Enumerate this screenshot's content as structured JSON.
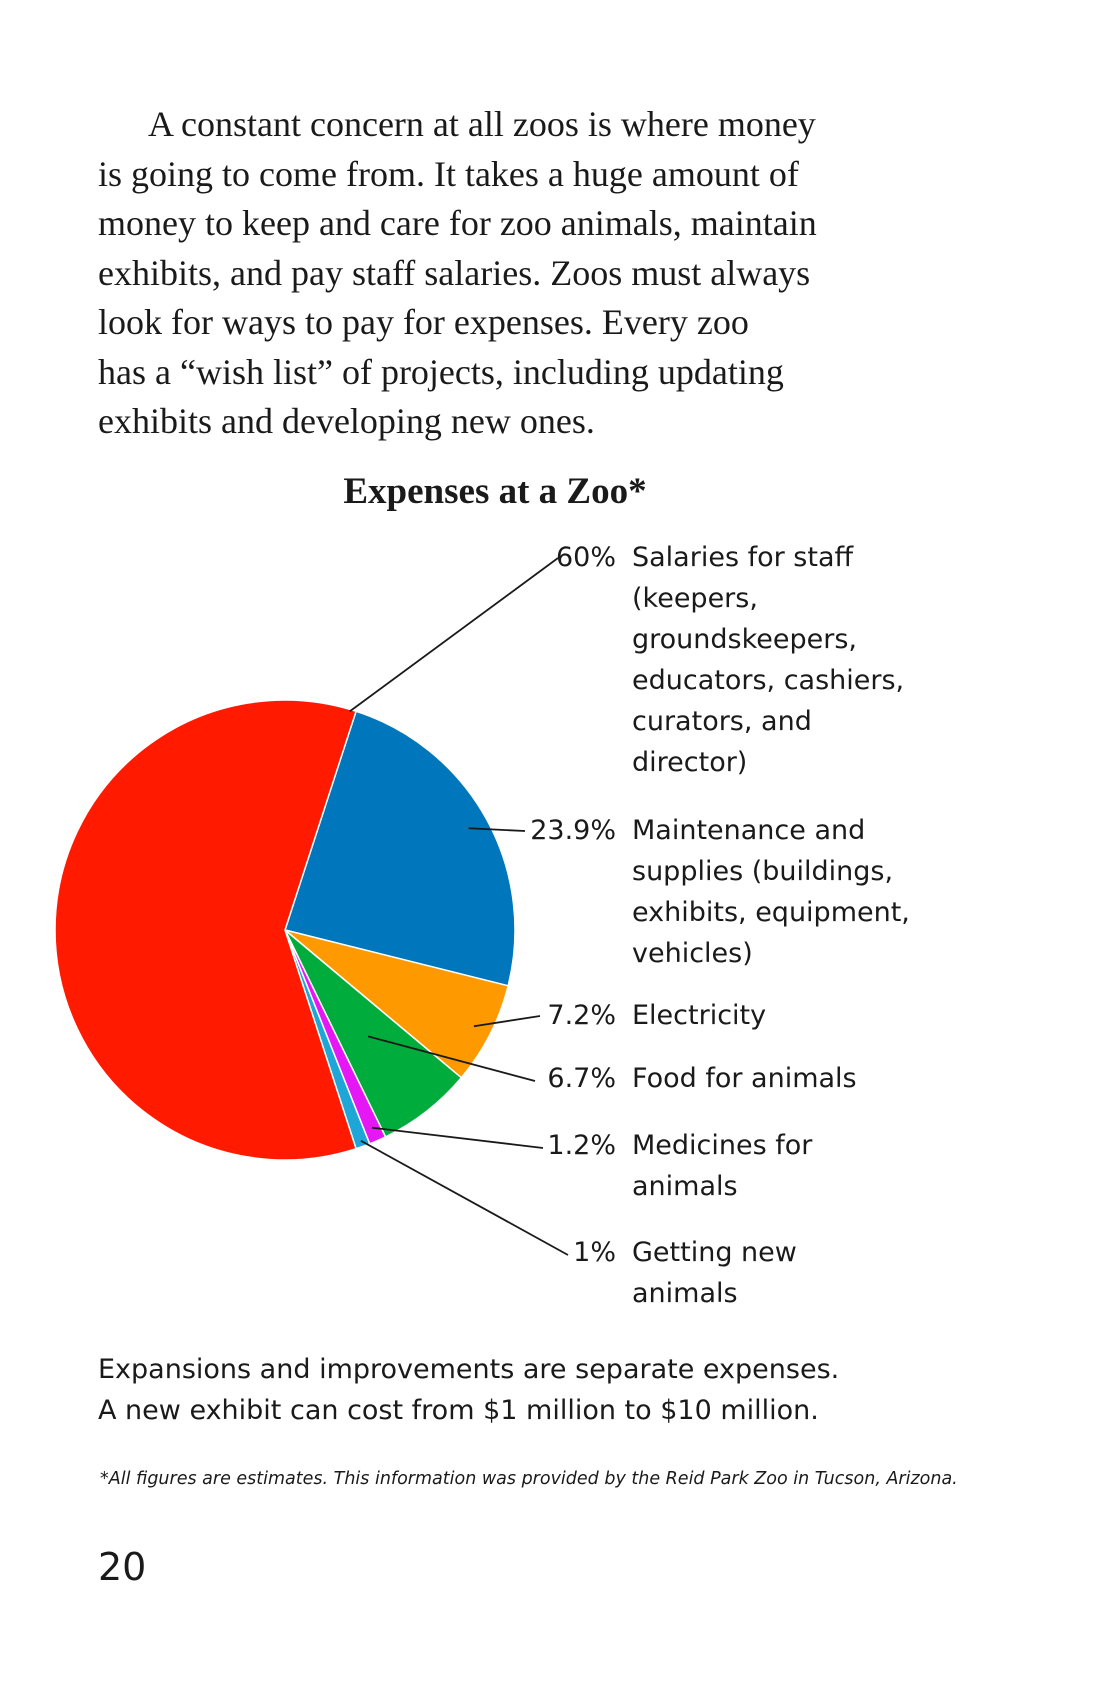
{
  "intro": {
    "lines": [
      "A constant concern at all zoos is where money",
      "is going to come from. It takes a huge amount of",
      "money to keep and care for zoo animals, maintain",
      "exhibits, and pay staff salaries. Zoos must always",
      "look for ways to pay for expenses. Every zoo",
      "has a “wish list” of projects, including updating",
      "exhibits and developing new ones."
    ]
  },
  "chart_data": {
    "type": "pie",
    "title": "Expenses at a Zoo*",
    "slices": [
      {
        "pct_label": "60%",
        "value": 60,
        "color": "#ff1a00",
        "label_lines": [
          "Salaries for staff",
          "(keepers,",
          "groundskeepers,",
          "educators, cashiers,",
          "curators, and",
          "director)"
        ]
      },
      {
        "pct_label": "23.9%",
        "value": 23.9,
        "color": "#0077bd",
        "label_lines": [
          "Maintenance and",
          "supplies (buildings,",
          "exhibits, equipment,",
          "vehicles)"
        ]
      },
      {
        "pct_label": "7.2%",
        "value": 7.2,
        "color": "#ff9900",
        "label_lines": [
          "Electricity"
        ]
      },
      {
        "pct_label": "6.7%",
        "value": 6.7,
        "color": "#00ac3c",
        "label_lines": [
          "Food for animals"
        ]
      },
      {
        "pct_label": "1.2%",
        "value": 1.2,
        "color": "#e617f5",
        "label_lines": [
          "Medicines for",
          "animals"
        ]
      },
      {
        "pct_label": "1%",
        "value": 1,
        "color": "#1ea6d6",
        "label_lines": [
          "Getting new",
          "animals"
        ]
      }
    ]
  },
  "note": {
    "lines": [
      "Expansions and improvements are separate expenses.",
      "A new exhibit can cost from $1 million to $10 million."
    ]
  },
  "footnote": "*All figures are estimates. This information was provided by the Reid Park Zoo in Tucson, Arizona.",
  "page_number": "20"
}
